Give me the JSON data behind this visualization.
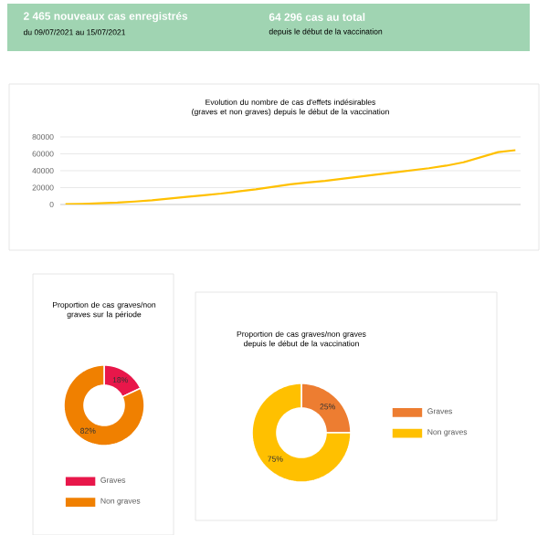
{
  "chart_data": [
    {
      "type": "other",
      "annotations": [
        "2 465 nouveaux cas enregistrés",
        "du 09/07/2021 au 15/07/2021",
        "64 296 cas au total",
        "depuis le début de la vaccination"
      ]
    },
    {
      "type": "line",
      "title": "Evolution du nombre de cas d'effets indésirables (graves et non graves) depuis le début de la vaccination",
      "categories": [
        null,
        null,
        null,
        null,
        null,
        null,
        null,
        null,
        null,
        null,
        null,
        null,
        null,
        null,
        null,
        null,
        null,
        null,
        null,
        null,
        null,
        null,
        null,
        null,
        null,
        null,
        null
      ],
      "values": [
        500,
        800,
        1500,
        2200,
        3500,
        5000,
        7000,
        9000,
        11000,
        13000,
        15500,
        18000,
        21000,
        24000,
        26000,
        28000,
        30500,
        33000,
        35500,
        38000,
        40500,
        43000,
        46000,
        50000,
        56000,
        62000,
        64296
      ],
      "color": "#ffc000",
      "ylim": [
        0,
        80000
      ],
      "yticks": [
        0,
        20000,
        40000,
        60000,
        80000
      ],
      "grid": "y"
    },
    {
      "type": "donut",
      "title": "Proportion de cas graves/non graves sur la période",
      "categories": [
        "Graves",
        "Non graves"
      ],
      "values": [
        18,
        82
      ],
      "colors": [
        "#e8174a",
        "#f08000"
      ],
      "value_labels": [
        "18%",
        "82%"
      ],
      "legend": "bottom"
    },
    {
      "type": "donut",
      "title": "Proportion de cas graves/non graves depuis le début de la vaccination",
      "categories": [
        "Graves",
        "Non graves"
      ],
      "values": [
        25,
        75
      ],
      "colors": [
        "#ed7d31",
        "#ffc000"
      ],
      "value_labels": [
        "25%",
        "75%"
      ],
      "legend": "right"
    }
  ]
}
